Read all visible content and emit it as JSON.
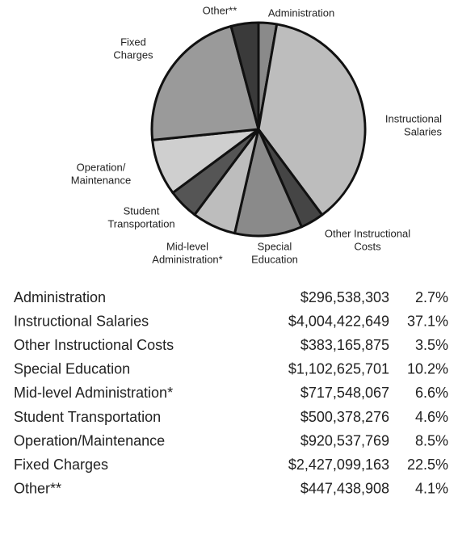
{
  "chart_data": {
    "type": "pie",
    "categories": [
      "Administration",
      "Instructional Salaries",
      "Other Instructional Costs",
      "Special Education",
      "Mid-level Administration*",
      "Student Transportation",
      "Operation/Maintenance",
      "Fixed Charges",
      "Other**"
    ],
    "pie_labels": [
      [
        "Administration"
      ],
      [
        "Instructional",
        "Salaries"
      ],
      [
        "Other Instructional",
        "Costs"
      ],
      [
        "Special",
        "Education"
      ],
      [
        "Mid-level",
        "Administration*"
      ],
      [
        "Student",
        "Transportation"
      ],
      [
        "Operation/",
        "Maintenance"
      ],
      [
        "Fixed",
        "Charges"
      ],
      [
        "Other**"
      ]
    ],
    "values": [
      296538303,
      4004422649,
      383165875,
      1102625701,
      717548067,
      500378276,
      920537769,
      2427099163,
      447438908
    ],
    "value_labels": [
      "$296,538,303",
      "$4,004,422,649",
      "$383,165,875",
      "$1,102,625,701",
      "$717,548,067",
      "$500,378,276",
      "$920,537,769",
      "$2,427,099,163",
      "$447,438,908"
    ],
    "percents": [
      2.7,
      37.1,
      3.5,
      10.2,
      6.6,
      4.6,
      8.5,
      22.5,
      4.1
    ],
    "percent_labels": [
      "2.7%",
      "37.1%",
      "3.5%",
      "10.2%",
      "6.6%",
      "4.6%",
      "8.5%",
      "22.5%",
      "4.1%"
    ],
    "colors": [
      "#8a8a8a",
      "#bdbdbd",
      "#454545",
      "#8a8a8a",
      "#bdbdbd",
      "#555555",
      "#cfcfcf",
      "#9a9a9a",
      "#3a3a3a"
    ]
  }
}
